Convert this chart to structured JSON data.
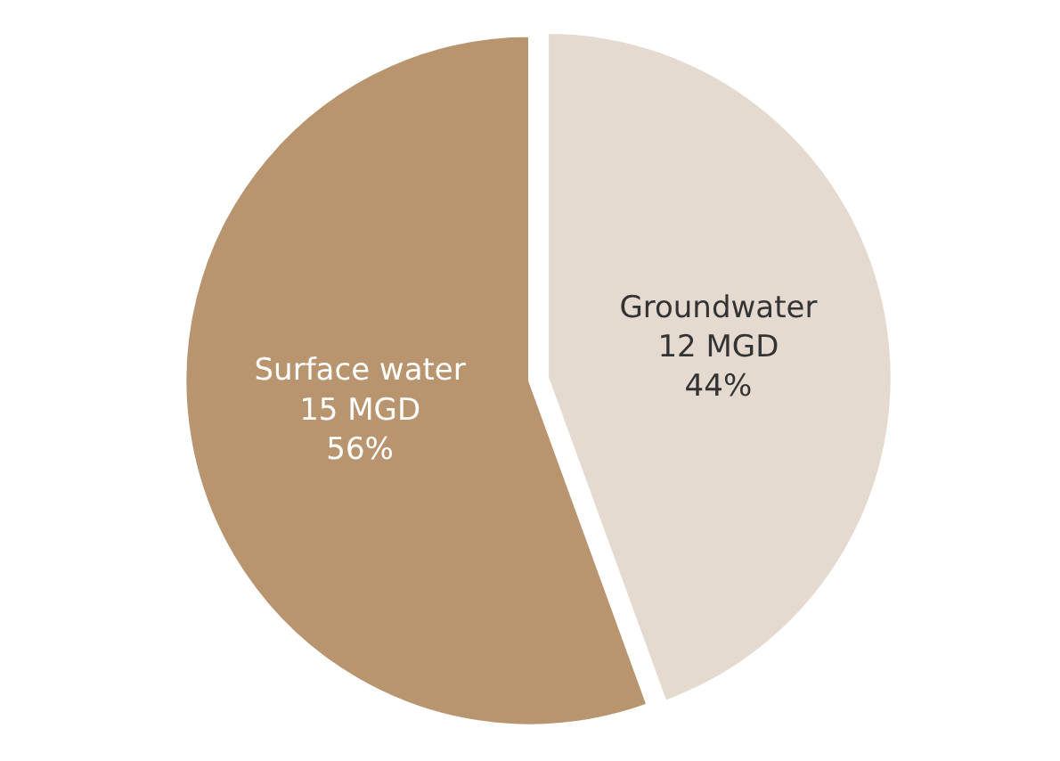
{
  "chart_data": {
    "type": "pie",
    "categories": [
      "Groundwater",
      "Surface water"
    ],
    "values": [
      12,
      15
    ],
    "value_labels": [
      "12 MGD\n44%",
      "15 MGD\n56%"
    ],
    "colors": [
      "#e5dacf",
      "#b8946f"
    ],
    "legend": false
  }
}
